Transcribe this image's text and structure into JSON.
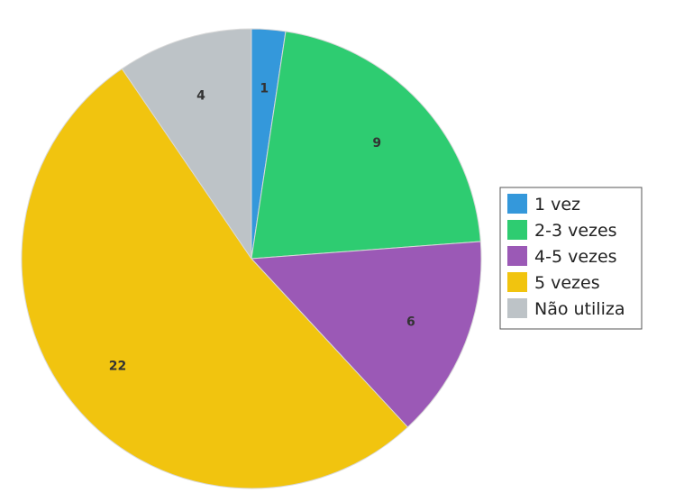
{
  "chart_data": {
    "type": "pie",
    "title": "",
    "categories": [
      "1 vez",
      "2-3 vezes",
      "4-5 vezes",
      "5 vezes",
      "Não utiliza"
    ],
    "values": [
      1,
      9,
      6,
      22,
      4
    ],
    "colors": [
      "#3498db",
      "#2ecc71",
      "#9b59b6",
      "#f1c40f",
      "#bdc3c7"
    ],
    "legend_position": "right",
    "start_angle": "12 o'clock",
    "direction": "clockwise"
  }
}
